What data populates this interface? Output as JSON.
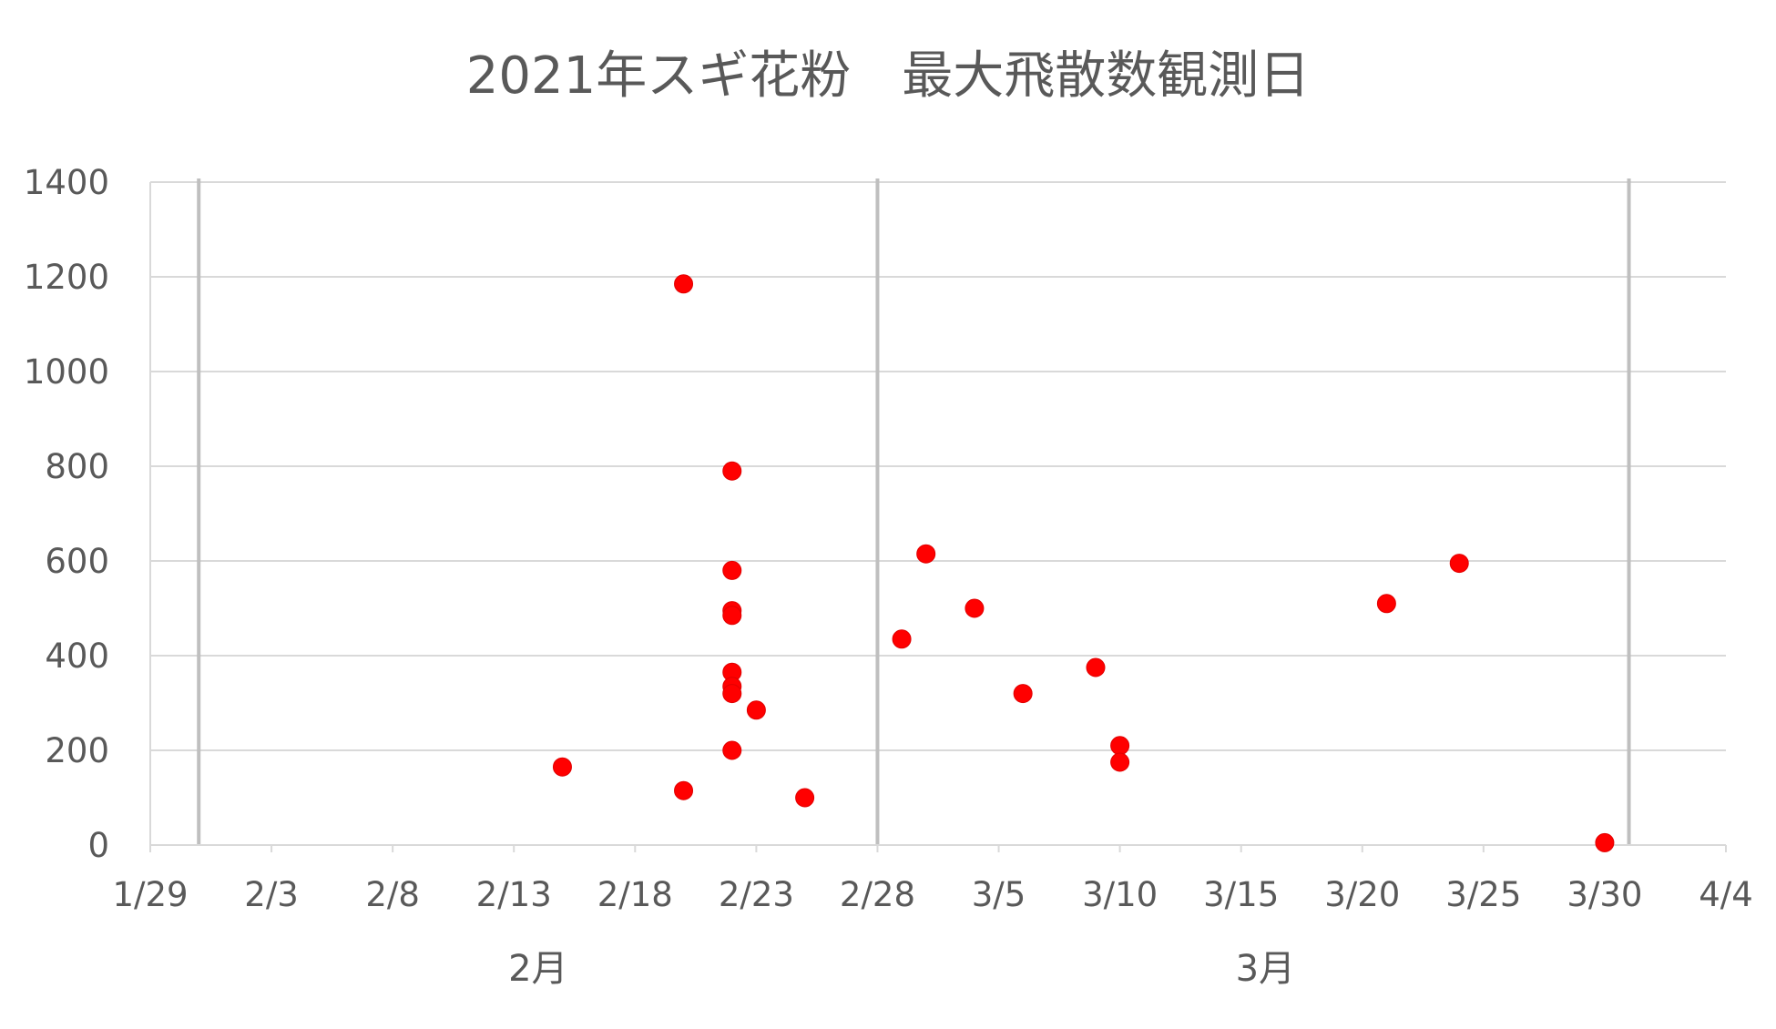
{
  "chart_data": {
    "type": "scatter",
    "title": "2021年スギ花粉　最大飛散数観測日",
    "xlabel": "",
    "ylabel": "",
    "x_axis": {
      "type": "date",
      "min": "2021-01-29",
      "max": "2021-04-04",
      "tick_labels": [
        "1/29",
        "2/3",
        "2/8",
        "2/13",
        "2/18",
        "2/23",
        "2/28",
        "3/5",
        "3/10",
        "3/15",
        "3/20",
        "3/25",
        "3/30",
        "4/4"
      ],
      "month_labels": [
        {
          "label": "2月",
          "center": "2021-02-14"
        },
        {
          "label": "3月",
          "center": "2021-03-16"
        }
      ],
      "month_boundaries": [
        "2021-01-31",
        "2021-02-28",
        "2021-03-31"
      ]
    },
    "ylim": [
      0,
      1400
    ],
    "y_ticks": [
      0,
      200,
      400,
      600,
      800,
      1000,
      1200,
      1400
    ],
    "grid": true,
    "legend": "none",
    "marker_color": "#ff0000",
    "points": [
      {
        "x": "2021-02-15",
        "y": 165
      },
      {
        "x": "2021-02-20",
        "y": 1185
      },
      {
        "x": "2021-02-20",
        "y": 115
      },
      {
        "x": "2021-02-22",
        "y": 790
      },
      {
        "x": "2021-02-22",
        "y": 580
      },
      {
        "x": "2021-02-22",
        "y": 495
      },
      {
        "x": "2021-02-22",
        "y": 485
      },
      {
        "x": "2021-02-22",
        "y": 365
      },
      {
        "x": "2021-02-22",
        "y": 335
      },
      {
        "x": "2021-02-22",
        "y": 320
      },
      {
        "x": "2021-02-22",
        "y": 200
      },
      {
        "x": "2021-02-23",
        "y": 285
      },
      {
        "x": "2021-02-25",
        "y": 100
      },
      {
        "x": "2021-03-01",
        "y": 435
      },
      {
        "x": "2021-03-02",
        "y": 615
      },
      {
        "x": "2021-03-04",
        "y": 500
      },
      {
        "x": "2021-03-06",
        "y": 320
      },
      {
        "x": "2021-03-09",
        "y": 375
      },
      {
        "x": "2021-03-10",
        "y": 210
      },
      {
        "x": "2021-03-10",
        "y": 175
      },
      {
        "x": "2021-03-21",
        "y": 510
      },
      {
        "x": "2021-03-24",
        "y": 595
      },
      {
        "x": "2021-03-30",
        "y": 5
      }
    ]
  }
}
